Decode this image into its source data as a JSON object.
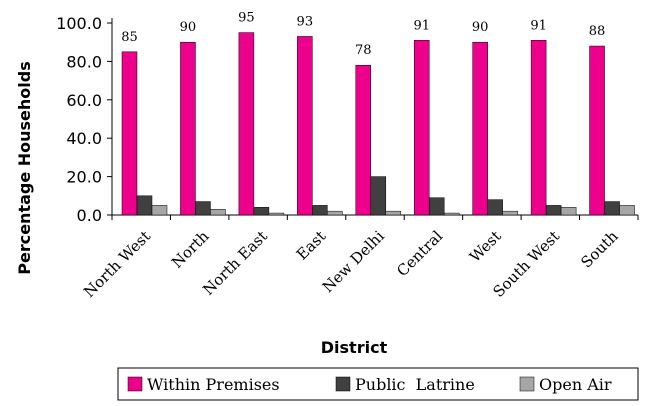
{
  "chart_data": {
    "type": "bar",
    "title": "",
    "xlabel": "District",
    "ylabel": "Percentage Households",
    "ylim": [
      0,
      100
    ],
    "yticks": [
      "0.0",
      "20.0",
      "40.0",
      "60.0",
      "80.0",
      "100.0"
    ],
    "categories": [
      "North West",
      "North",
      "North East",
      "East",
      "New Delhi",
      "Central",
      "West",
      "South West",
      "South"
    ],
    "series": [
      {
        "name": "Within Premises",
        "color": "#ec008c",
        "values": [
          85,
          90,
          95,
          93,
          78,
          91,
          90,
          91,
          88
        ]
      },
      {
        "name": "Public  Latrine",
        "color": "#404040",
        "values": [
          10,
          7,
          4,
          5,
          20,
          9,
          8,
          5,
          7
        ]
      },
      {
        "name": "Open Air",
        "color": "#a6a6a6",
        "values": [
          5,
          3,
          1,
          2,
          2,
          1,
          2,
          4,
          5
        ]
      }
    ],
    "data_labels": [
      "85",
      "90",
      "95",
      "93",
      "78",
      "91",
      "90",
      "91",
      "88"
    ],
    "legend_position": "bottom",
    "grid": false
  }
}
